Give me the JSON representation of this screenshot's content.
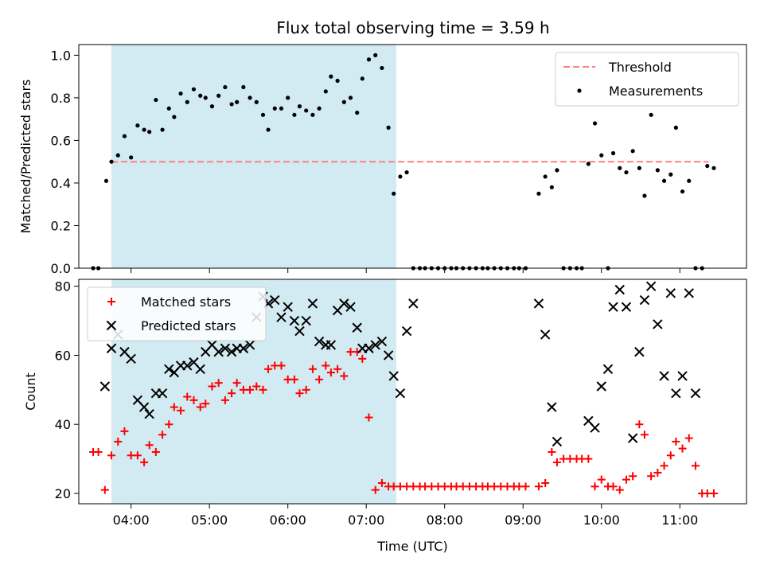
{
  "chart_data": [
    {
      "type": "scatter",
      "title": "Flux total observing time = 3.59 h",
      "xlabel": "",
      "ylabel": "Matched/Predicted stars",
      "xlim": [
        "03:20",
        "11:51"
      ],
      "ylim": [
        0,
        1.05
      ],
      "x_ticks": [
        "04:00",
        "05:00",
        "06:00",
        "07:00",
        "08:00",
        "09:00",
        "10:00",
        "11:00"
      ],
      "y_ticks": [
        "0.0",
        "0.2",
        "0.4",
        "0.6",
        "0.8",
        "1.0"
      ],
      "shaded_span": [
        "03:45",
        "07:23"
      ],
      "shaded_color": "#add8e6",
      "legend_position": "upper right",
      "series": [
        {
          "name": "Threshold",
          "style": "dashed-line",
          "color": "#ff8080",
          "x": [
            "03:45",
            "11:22"
          ],
          "y": [
            0.5,
            0.5
          ]
        },
        {
          "name": "Measurements",
          "style": "dot",
          "color": "#000000",
          "x": [
            "03:31",
            "03:35",
            "03:41",
            "03:45",
            "03:50",
            "03:55",
            "04:00",
            "04:05",
            "04:10",
            "04:14",
            "04:19",
            "04:24",
            "04:29",
            "04:33",
            "04:38",
            "04:43",
            "04:48",
            "04:53",
            "04:57",
            "05:02",
            "05:07",
            "05:12",
            "05:17",
            "05:21",
            "05:26",
            "05:31",
            "05:36",
            "05:41",
            "05:45",
            "05:50",
            "05:55",
            "06:00",
            "06:05",
            "06:09",
            "06:14",
            "06:19",
            "06:24",
            "06:29",
            "06:33",
            "06:38",
            "06:43",
            "06:48",
            "06:53",
            "06:57",
            "07:02",
            "07:07",
            "07:12",
            "07:17",
            "07:21",
            "07:26",
            "07:31",
            "07:36",
            "07:41",
            "07:45",
            "07:50",
            "07:55",
            "08:00",
            "08:05",
            "08:09",
            "08:14",
            "08:19",
            "08:24",
            "08:29",
            "08:33",
            "08:38",
            "08:43",
            "08:48",
            "08:53",
            "08:57",
            "09:02",
            "09:12",
            "09:17",
            "09:22",
            "09:26",
            "09:31",
            "09:36",
            "09:41",
            "09:45",
            "09:50",
            "09:55",
            "10:00",
            "10:05",
            "10:09",
            "10:14",
            "10:19",
            "10:24",
            "10:29",
            "10:33",
            "10:38",
            "10:43",
            "10:48",
            "10:53",
            "10:57",
            "11:02",
            "11:07",
            "11:12",
            "11:17",
            "11:21",
            "11:26"
          ],
          "y": [
            0.0,
            0.0,
            0.41,
            0.5,
            0.53,
            0.62,
            0.52,
            0.67,
            0.65,
            0.64,
            0.79,
            0.65,
            0.75,
            0.71,
            0.82,
            0.78,
            0.84,
            0.81,
            0.8,
            0.76,
            0.81,
            0.85,
            0.77,
            0.78,
            0.85,
            0.8,
            0.78,
            0.72,
            0.65,
            0.75,
            0.75,
            0.8,
            0.72,
            0.76,
            0.74,
            0.72,
            0.75,
            0.83,
            0.9,
            0.88,
            0.78,
            0.8,
            0.73,
            0.89,
            0.98,
            1.0,
            0.94,
            0.66,
            0.35,
            0.43,
            0.45,
            0.0,
            0.0,
            0.0,
            0.0,
            0.0,
            0.0,
            0.0,
            0.0,
            0.0,
            0.0,
            0.0,
            0.0,
            0.0,
            0.0,
            0.0,
            0.0,
            0.0,
            0.0,
            0.0,
            0.35,
            0.43,
            0.38,
            0.46,
            0.0,
            0.0,
            0.0,
            0.0,
            0.49,
            0.68,
            0.53,
            0.0,
            0.54,
            0.47,
            0.45,
            0.55,
            0.47,
            0.34,
            0.72,
            0.46,
            0.41,
            0.44,
            0.66,
            0.36,
            0.41,
            0.0,
            0.0,
            0.48,
            0.47
          ]
        }
      ]
    },
    {
      "type": "scatter",
      "title": "",
      "xlabel": "Time (UTC)",
      "ylabel": "Count",
      "xlim": [
        "03:20",
        "11:51"
      ],
      "ylim": [
        17,
        82
      ],
      "x_ticks": [
        "04:00",
        "05:00",
        "06:00",
        "07:00",
        "08:00",
        "09:00",
        "10:00",
        "11:00"
      ],
      "y_ticks": [
        "20",
        "40",
        "60",
        "80"
      ],
      "shaded_span": [
        "03:45",
        "07:23"
      ],
      "shaded_color": "#add8e6",
      "legend_position": "upper left",
      "series": [
        {
          "name": "Matched stars",
          "style": "plus",
          "color": "#ff0000",
          "x": [
            "03:31",
            "03:35",
            "03:40",
            "03:45",
            "03:50",
            "03:55",
            "04:00",
            "04:05",
            "04:10",
            "04:14",
            "04:19",
            "04:24",
            "04:29",
            "04:33",
            "04:38",
            "04:43",
            "04:48",
            "04:53",
            "04:57",
            "05:02",
            "05:07",
            "05:12",
            "05:17",
            "05:21",
            "05:26",
            "05:31",
            "05:36",
            "05:41",
            "05:45",
            "05:50",
            "05:55",
            "06:00",
            "06:05",
            "06:09",
            "06:14",
            "06:19",
            "06:24",
            "06:29",
            "06:33",
            "06:38",
            "06:43",
            "06:48",
            "06:53",
            "06:57",
            "07:02",
            "07:07",
            "07:12",
            "07:17",
            "07:21",
            "07:26",
            "07:31",
            "07:36",
            "07:41",
            "07:45",
            "07:50",
            "07:55",
            "08:00",
            "08:05",
            "08:09",
            "08:14",
            "08:19",
            "08:24",
            "08:29",
            "08:33",
            "08:38",
            "08:43",
            "08:48",
            "08:53",
            "08:57",
            "09:02",
            "09:12",
            "09:17",
            "09:22",
            "09:26",
            "09:31",
            "09:36",
            "09:41",
            "09:45",
            "09:50",
            "09:55",
            "10:00",
            "10:05",
            "10:09",
            "10:14",
            "10:19",
            "10:24",
            "10:29",
            "10:33",
            "10:38",
            "10:43",
            "10:48",
            "10:53",
            "10:57",
            "11:02",
            "11:07",
            "11:12",
            "11:17",
            "11:21",
            "11:26"
          ],
          "y": [
            32,
            32,
            21,
            31,
            35,
            38,
            31,
            31,
            29,
            34,
            32,
            37,
            40,
            45,
            44,
            48,
            47,
            45,
            46,
            51,
            52,
            47,
            49,
            52,
            50,
            50,
            51,
            50,
            56,
            57,
            57,
            53,
            53,
            49,
            50,
            56,
            53,
            57,
            55,
            56,
            54,
            61,
            61,
            59,
            42,
            21,
            23,
            22,
            22,
            22,
            22,
            22,
            22,
            22,
            22,
            22,
            22,
            22,
            22,
            22,
            22,
            22,
            22,
            22,
            22,
            22,
            22,
            22,
            22,
            22,
            22,
            23,
            32,
            29,
            30,
            30,
            30,
            30,
            30,
            22,
            24,
            22,
            22,
            21,
            24,
            25,
            40,
            37,
            25,
            26,
            28,
            31,
            35,
            33,
            36,
            28,
            20,
            20,
            20
          ]
        },
        {
          "name": "Predicted stars",
          "style": "x",
          "color": "#000000",
          "x": [
            "03:40",
            "03:45",
            "03:50",
            "03:55",
            "04:00",
            "04:05",
            "04:10",
            "04:14",
            "04:19",
            "04:24",
            "04:29",
            "04:33",
            "04:38",
            "04:43",
            "04:48",
            "04:53",
            "04:57",
            "05:02",
            "05:07",
            "05:12",
            "05:17",
            "05:21",
            "05:26",
            "05:31",
            "05:36",
            "05:41",
            "05:45",
            "05:50",
            "05:55",
            "06:00",
            "06:05",
            "06:09",
            "06:14",
            "06:19",
            "06:24",
            "06:29",
            "06:33",
            "06:38",
            "06:43",
            "06:48",
            "06:53",
            "06:57",
            "07:02",
            "07:07",
            "07:12",
            "07:17",
            "07:21",
            "07:26",
            "07:31",
            "07:36",
            "09:12",
            "09:17",
            "09:22",
            "09:26",
            "09:50",
            "09:55",
            "10:00",
            "10:05",
            "10:09",
            "10:14",
            "10:19",
            "10:24",
            "10:29",
            "10:33",
            "10:38",
            "10:43",
            "10:48",
            "10:53",
            "10:57",
            "11:02",
            "11:07",
            "11:12"
          ],
          "y": [
            51,
            62,
            66,
            61,
            59,
            47,
            45,
            43,
            49,
            49,
            56,
            55,
            57,
            57,
            58,
            56,
            61,
            63,
            61,
            62,
            61,
            62,
            62,
            63,
            71,
            77,
            75,
            76,
            71,
            74,
            70,
            67,
            70,
            75,
            64,
            63,
            63,
            73,
            75,
            74,
            68,
            62,
            62,
            63,
            64,
            60,
            54,
            49,
            67,
            75,
            75,
            66,
            45,
            35,
            41,
            39,
            51,
            56,
            74,
            79,
            74,
            36,
            61,
            76,
            80,
            69,
            54,
            78,
            49,
            54,
            78,
            49
          ]
        }
      ]
    }
  ]
}
